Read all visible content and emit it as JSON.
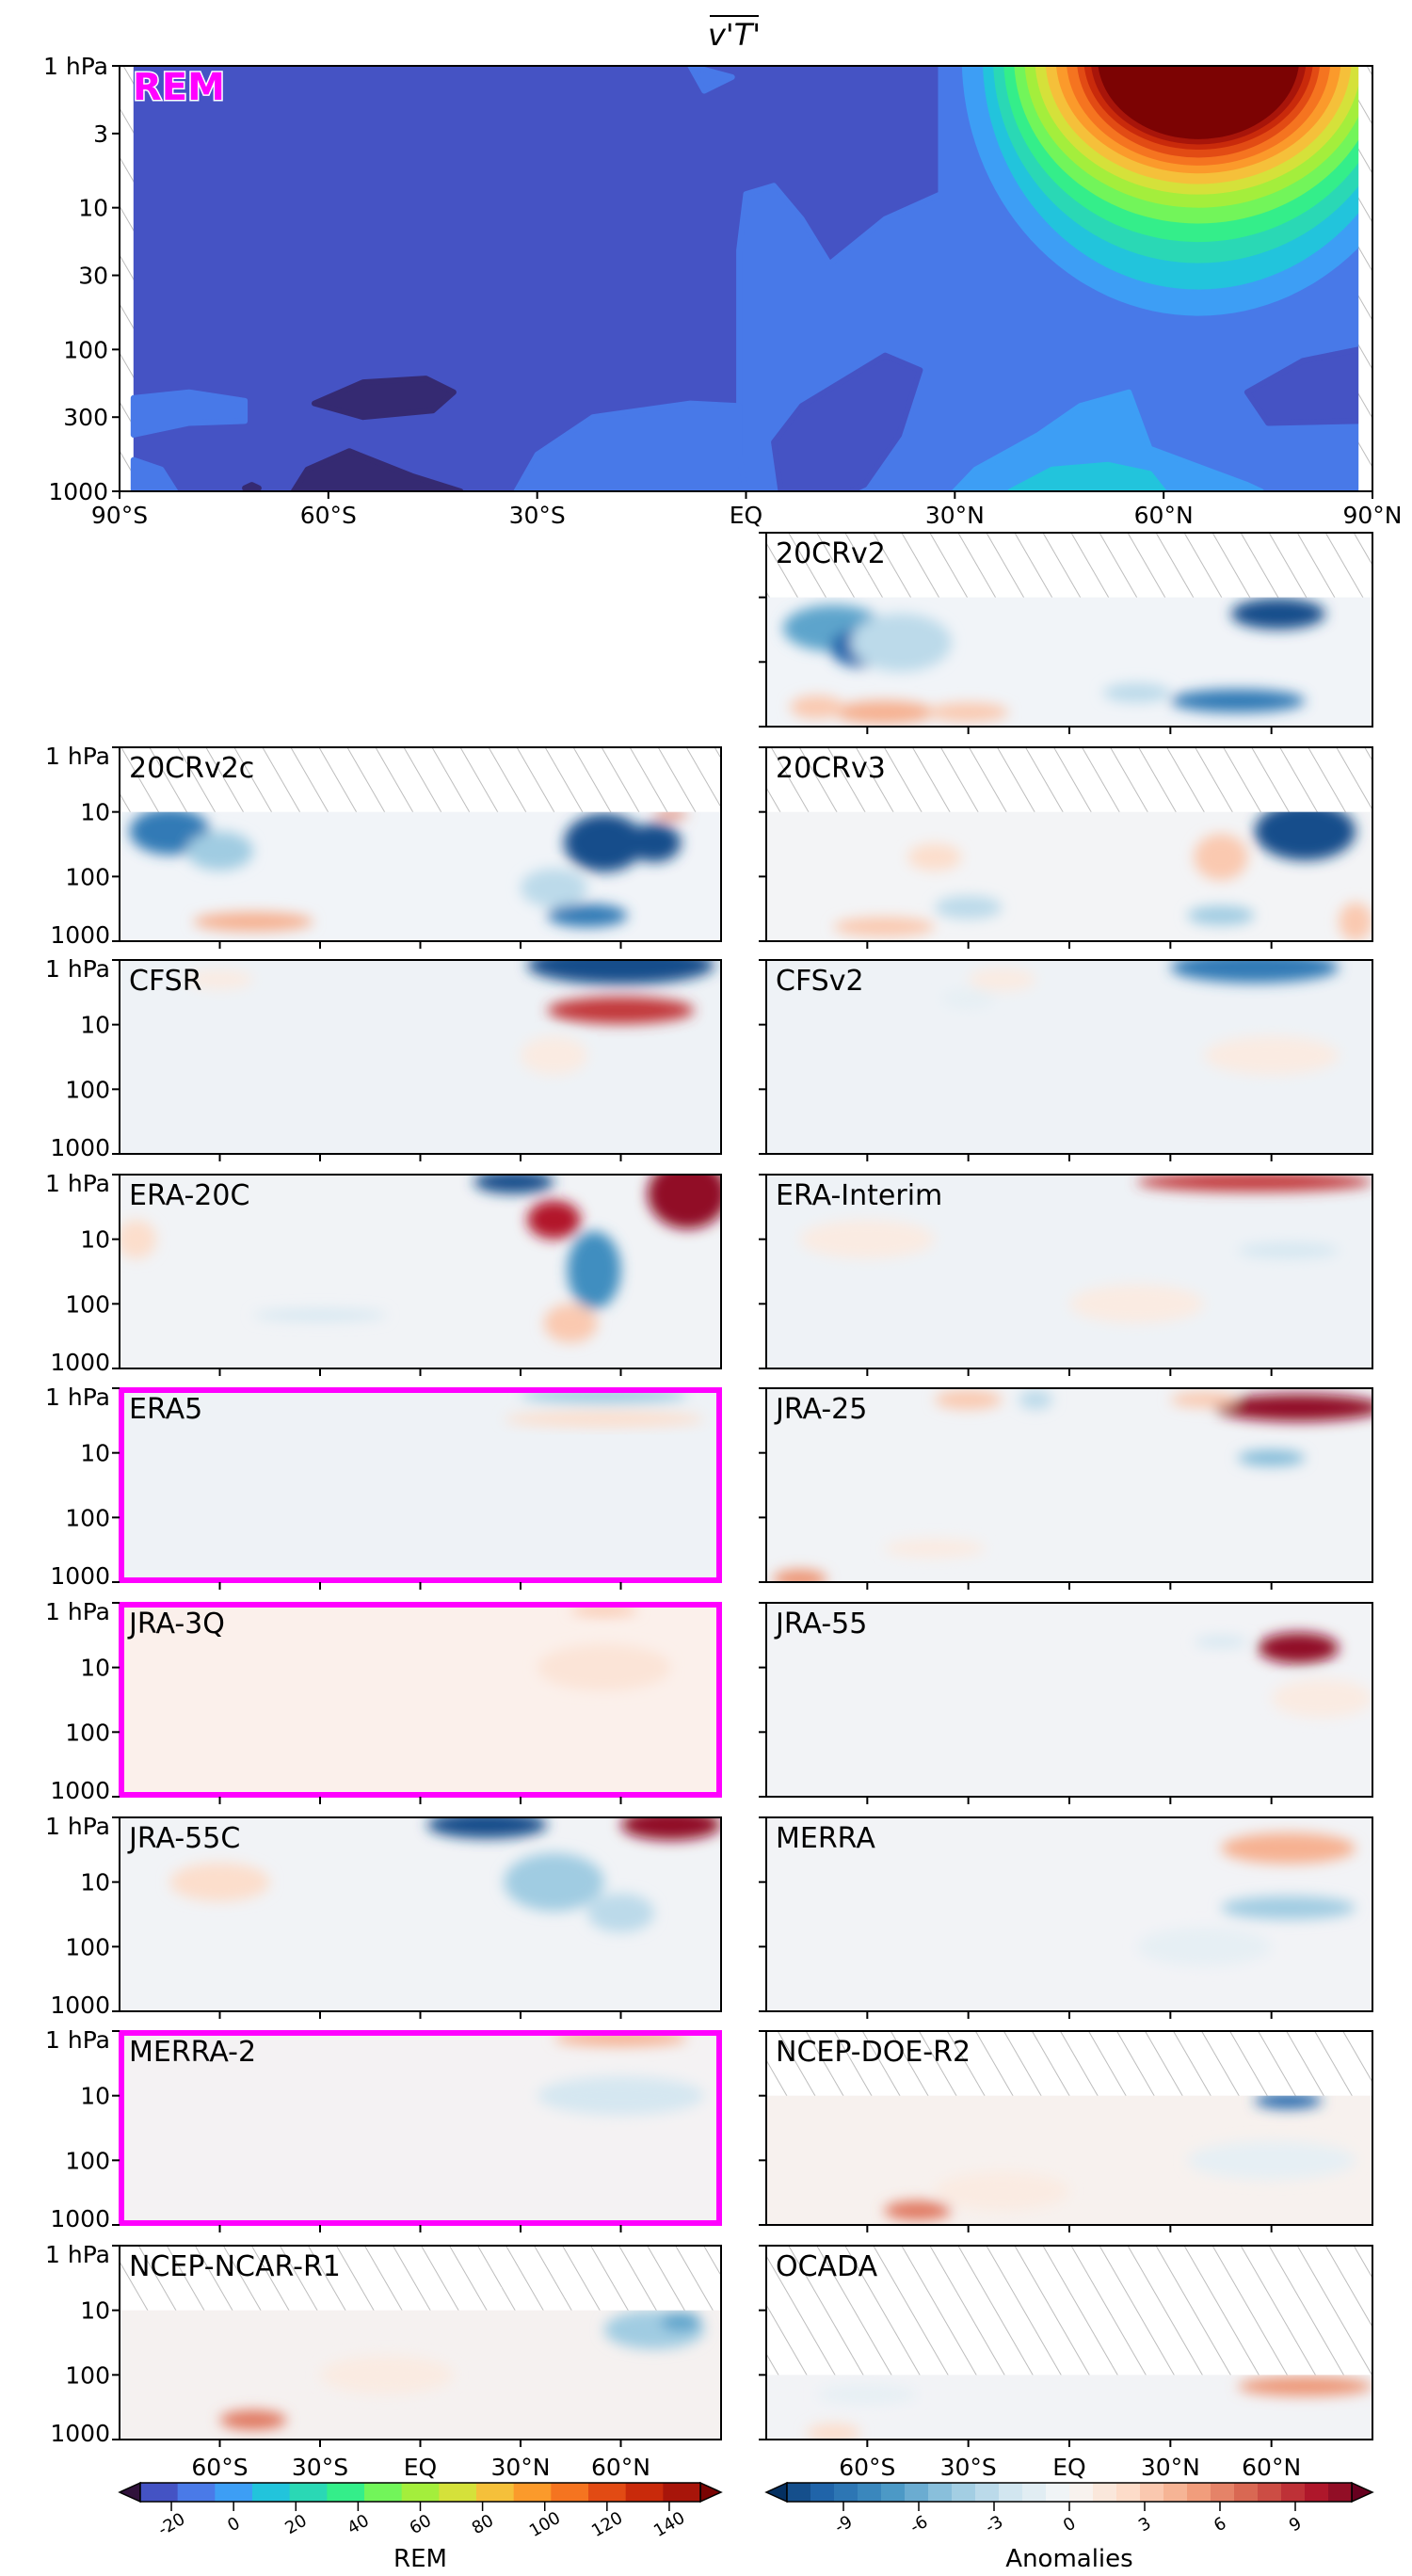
{
  "title": "v'T'",
  "top_panel": {
    "label": "REM",
    "label_color": "#ff00ff",
    "y_ticks": [
      "1 hPa",
      "3",
      "10",
      "30",
      "100",
      "300",
      "1000"
    ],
    "x_ticks": [
      "90°S",
      "60°S",
      "30°S",
      "EQ",
      "30°N",
      "60°N",
      "90°N"
    ]
  },
  "panels": [
    {
      "label": "20CRv2",
      "highlight": false
    },
    {
      "label": "20CRv2c",
      "highlight": false
    },
    {
      "label": "20CRv3",
      "highlight": false
    },
    {
      "label": "CFSR",
      "highlight": false
    },
    {
      "label": "CFSv2",
      "highlight": false
    },
    {
      "label": "ERA-20C",
      "highlight": false
    },
    {
      "label": "ERA-Interim",
      "highlight": false
    },
    {
      "label": "ERA5",
      "highlight": true
    },
    {
      "label": "JRA-25",
      "highlight": false
    },
    {
      "label": "JRA-3Q",
      "highlight": true
    },
    {
      "label": "JRA-55",
      "highlight": false
    },
    {
      "label": "JRA-55C",
      "highlight": false
    },
    {
      "label": "MERRA",
      "highlight": false
    },
    {
      "label": "MERRA-2",
      "highlight": true
    },
    {
      "label": "NCEP-DOE-R2",
      "highlight": false
    },
    {
      "label": "NCEP-NCAR-R1",
      "highlight": false
    },
    {
      "label": "OCADA",
      "highlight": false
    }
  ],
  "small_y_ticks": [
    "1 hPa",
    "10",
    "100",
    "1000"
  ],
  "small_x_ticks": [
    "60°S",
    "30°S",
    "EQ",
    "30°N",
    "60°N"
  ],
  "highlight_color": "#ff00ff",
  "colorbars": {
    "rem": {
      "label": "REM",
      "ticks": [
        "-20",
        "0",
        "20",
        "40",
        "60",
        "80",
        "100",
        "120",
        "140"
      ],
      "range": [
        -30,
        150
      ],
      "colormap": "jet"
    },
    "anom": {
      "label": "Anomalies",
      "ticks": [
        "-9",
        "-6",
        "-3",
        "0",
        "3",
        "6",
        "9"
      ],
      "range": [
        -11.25,
        11.25
      ],
      "colormap": "RdBu_r"
    }
  },
  "chart_data": {
    "type": "heatmap",
    "title": "v'T'",
    "xlabel": "",
    "ylabel": "",
    "x_axis": {
      "range": [
        "90°S",
        "90°N"
      ],
      "ticks": [
        "90°S",
        "60°S",
        "30°S",
        "EQ",
        "30°N",
        "60°N",
        "90°N"
      ]
    },
    "y_axis": {
      "range": [
        1000,
        1
      ],
      "scale": "log",
      "ticks": [
        "1 hPa",
        "3",
        "10",
        "30",
        "100",
        "300",
        "1000"
      ]
    },
    "grid": false
  }
}
